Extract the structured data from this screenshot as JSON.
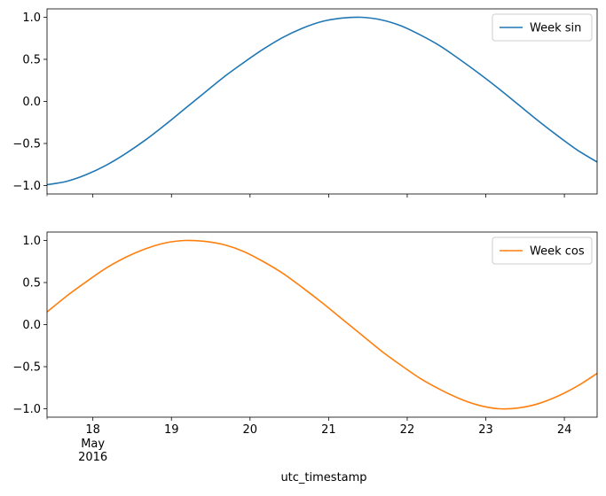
{
  "chart_data": [
    {
      "type": "line",
      "series": [
        {
          "name": "Week sin",
          "color": "#1f77b4",
          "x": [
            "2016-05-17 10:00",
            "2016-05-17 16:00",
            "2016-05-17 22:00",
            "2016-05-18 04:00",
            "2016-05-18 10:00",
            "2016-05-18 16:00",
            "2016-05-18 22:00",
            "2016-05-19 04:00",
            "2016-05-19 10:00",
            "2016-05-19 16:00",
            "2016-05-19 22:00",
            "2016-05-20 04:00",
            "2016-05-20 10:00",
            "2016-05-20 16:00",
            "2016-05-20 22:00",
            "2016-05-21 04:00",
            "2016-05-21 10:00",
            "2016-05-21 16:00",
            "2016-05-21 22:00",
            "2016-05-22 04:00",
            "2016-05-22 10:00",
            "2016-05-22 16:00",
            "2016-05-22 22:00",
            "2016-05-23 04:00",
            "2016-05-23 10:00",
            "2016-05-23 16:00",
            "2016-05-23 22:00",
            "2016-05-24 04:00",
            "2016-05-24 10:00"
          ],
          "values": [
            -0.99,
            -0.95,
            -0.87,
            -0.76,
            -0.62,
            -0.46,
            -0.28,
            -0.09,
            0.1,
            0.29,
            0.46,
            0.62,
            0.76,
            0.87,
            0.95,
            0.99,
            1.0,
            0.97,
            0.9,
            0.79,
            0.66,
            0.5,
            0.33,
            0.15,
            -0.04,
            -0.23,
            -0.41,
            -0.58,
            -0.72
          ]
        }
      ],
      "ylim": [
        -1.1,
        1.1
      ],
      "yticks": [
        -1.0,
        -0.5,
        0.0,
        0.5,
        1.0
      ],
      "ytick_labels": [
        "−1.0",
        "−0.5",
        "0.0",
        "0.5",
        "1.0"
      ],
      "xlabel": "",
      "ylabel": "",
      "legend": "upper right"
    },
    {
      "type": "line",
      "series": [
        {
          "name": "Week cos",
          "color": "#ff7f0e",
          "x": [
            "2016-05-17 10:00",
            "2016-05-17 16:00",
            "2016-05-17 22:00",
            "2016-05-18 04:00",
            "2016-05-18 10:00",
            "2016-05-18 16:00",
            "2016-05-18 22:00",
            "2016-05-19 04:00",
            "2016-05-19 10:00",
            "2016-05-19 16:00",
            "2016-05-19 22:00",
            "2016-05-20 04:00",
            "2016-05-20 10:00",
            "2016-05-20 16:00",
            "2016-05-20 22:00",
            "2016-05-21 04:00",
            "2016-05-21 10:00",
            "2016-05-21 16:00",
            "2016-05-21 22:00",
            "2016-05-22 04:00",
            "2016-05-22 10:00",
            "2016-05-22 16:00",
            "2016-05-22 22:00",
            "2016-05-23 04:00",
            "2016-05-23 10:00",
            "2016-05-23 16:00",
            "2016-05-23 22:00",
            "2016-05-24 04:00",
            "2016-05-24 10:00"
          ],
          "values": [
            0.15,
            0.34,
            0.51,
            0.67,
            0.8,
            0.9,
            0.97,
            1.0,
            0.99,
            0.95,
            0.87,
            0.75,
            0.61,
            0.44,
            0.26,
            0.07,
            -0.12,
            -0.31,
            -0.48,
            -0.64,
            -0.77,
            -0.88,
            -0.96,
            -1.0,
            -0.99,
            -0.94,
            -0.85,
            -0.73,
            -0.58
          ]
        }
      ],
      "ylim": [
        -1.1,
        1.1
      ],
      "yticks": [
        -1.0,
        -0.5,
        0.0,
        0.5,
        1.0
      ],
      "ytick_labels": [
        "−1.0",
        "−0.5",
        "0.0",
        "0.5",
        "1.0"
      ],
      "xlabel": "utc_timestamp",
      "ylabel": "",
      "legend": "upper right",
      "xlim": [
        "2016-05-17 10:00",
        "2016-05-24 10:00"
      ],
      "xticks": [
        "2016-05-18",
        "2016-05-19",
        "2016-05-20",
        "2016-05-21",
        "2016-05-22",
        "2016-05-23",
        "2016-05-24"
      ],
      "xtick_labels": [
        "18",
        "19",
        "20",
        "21",
        "22",
        "23",
        "24"
      ],
      "xtick_sublabels": [
        "May",
        "2016"
      ]
    }
  ]
}
